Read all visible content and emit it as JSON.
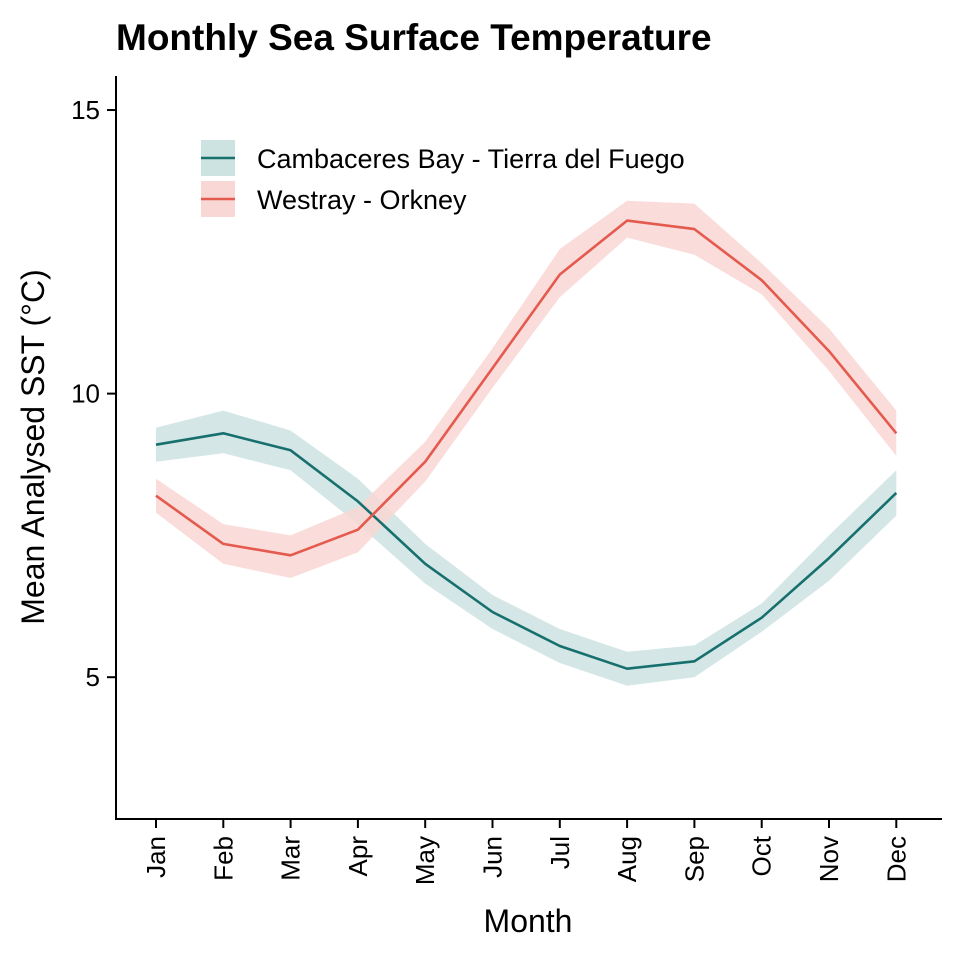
{
  "chart_data": {
    "type": "line",
    "title": "Monthly Sea Surface Temperature",
    "xlabel": "Month",
    "ylabel": "Mean Analysed SST (°C)",
    "categories": [
      "Jan",
      "Feb",
      "Mar",
      "Apr",
      "May",
      "Jun",
      "Jul",
      "Aug",
      "Sep",
      "Oct",
      "Nov",
      "Dec"
    ],
    "ylim": [
      2.5,
      15.6
    ],
    "yticks": [
      5,
      10,
      15
    ],
    "grid": false,
    "legend_position": "top-left",
    "series": [
      {
        "name": "Cambaceres Bay - Tierra del Fuego",
        "color": "#17706e",
        "band_color": "#cce3e2",
        "values": [
          9.1,
          9.3,
          9.0,
          8.1,
          7.0,
          6.15,
          5.55,
          5.15,
          5.28,
          6.05,
          7.1,
          8.25
        ],
        "lower": [
          8.8,
          8.95,
          8.65,
          7.7,
          6.65,
          5.85,
          5.25,
          4.85,
          5.0,
          5.8,
          6.7,
          7.85
        ],
        "upper": [
          9.4,
          9.7,
          9.35,
          8.5,
          7.35,
          6.45,
          5.85,
          5.45,
          5.56,
          6.3,
          7.5,
          8.65
        ]
      },
      {
        "name": "Westray - Orkney",
        "color": "#e55a4e",
        "band_color": "#f9d7d4",
        "values": [
          8.2,
          7.35,
          7.15,
          7.6,
          8.8,
          10.45,
          12.1,
          13.05,
          12.9,
          12.0,
          10.75,
          9.3
        ],
        "lower": [
          7.9,
          7.0,
          6.75,
          7.2,
          8.45,
          10.1,
          11.7,
          12.75,
          12.45,
          11.75,
          10.4,
          8.9
        ],
        "upper": [
          8.5,
          7.7,
          7.5,
          8.0,
          9.15,
          10.8,
          12.55,
          13.4,
          13.35,
          12.3,
          11.15,
          9.7
        ]
      }
    ]
  }
}
